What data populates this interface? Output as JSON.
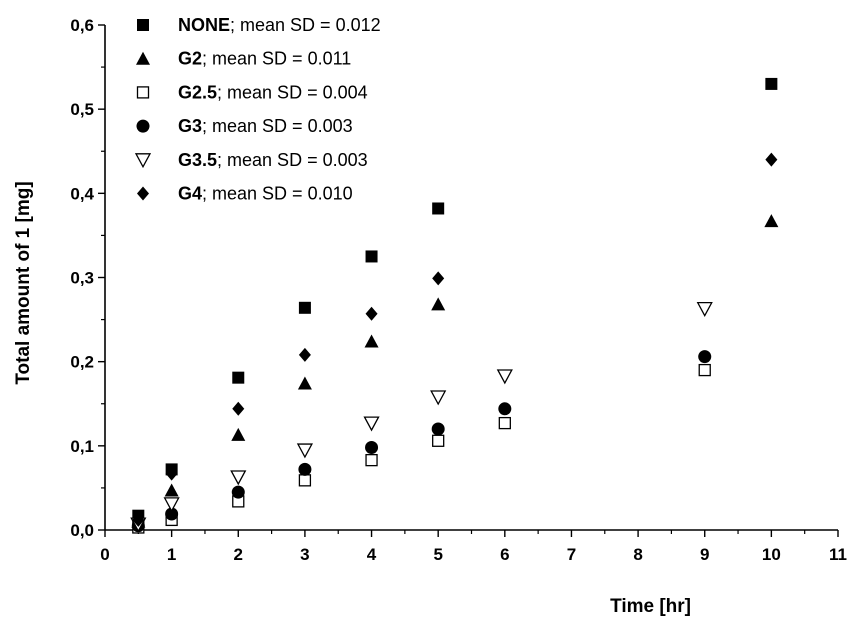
{
  "chart_data": {
    "type": "scatter",
    "xlabel": "Time [hr]",
    "ylabel": "Total amount of 1 [mg]",
    "xlim": [
      0,
      11
    ],
    "ylim": [
      0,
      0.6
    ],
    "x_ticks": [
      "0",
      "1",
      "2",
      "3",
      "4",
      "5",
      "6",
      "7",
      "8",
      "9",
      "10",
      "11"
    ],
    "y_ticks": [
      "0,0",
      "0,1",
      "0,2",
      "0,3",
      "0,4",
      "0,5",
      "0,6"
    ],
    "grid": false,
    "legend_position": "top-left",
    "series": [
      {
        "name": "NONE",
        "stat": "; mean SD = 0.012",
        "marker": "filled-square",
        "x": [
          0.5,
          1,
          2,
          3,
          4,
          5,
          10
        ],
        "y": [
          0.017,
          0.072,
          0.181,
          0.264,
          0.325,
          0.382,
          0.53
        ]
      },
      {
        "name": "G2",
        "stat": "; mean SD = 0.011",
        "marker": "filled-triangle",
        "x": [
          0.5,
          1,
          2,
          3,
          4,
          5,
          10
        ],
        "y": [
          0.01,
          0.047,
          0.113,
          0.174,
          0.224,
          0.268,
          0.367
        ]
      },
      {
        "name": "G2.5",
        "stat": "; mean SD = 0.004",
        "marker": "open-square",
        "x": [
          0.5,
          1,
          2,
          3,
          4,
          5,
          6,
          9,
          10
        ],
        "y": [
          0.003,
          0.012,
          0.034,
          0.059,
          0.083,
          0.106,
          0.127,
          0.19,
          null
        ]
      },
      {
        "name": "G3",
        "stat": "; mean SD = 0.003",
        "marker": "filled-circle",
        "x": [
          0.5,
          1,
          2,
          3,
          4,
          5,
          6,
          9
        ],
        "y": [
          0.005,
          0.019,
          0.045,
          0.072,
          0.098,
          0.12,
          0.144,
          0.206
        ]
      },
      {
        "name": "G3.5",
        "stat": "; mean SD = 0.003",
        "marker": "open-triangle-down",
        "x": [
          0.5,
          1,
          2,
          3,
          4,
          5,
          6,
          9
        ],
        "y": [
          0.007,
          0.031,
          0.063,
          0.095,
          0.127,
          0.158,
          0.183,
          0.263
        ]
      },
      {
        "name": "G4",
        "stat": "; mean SD = 0.010",
        "marker": "filled-diamond",
        "x": [
          0.5,
          1,
          2,
          3,
          4,
          5,
          10
        ],
        "y": [
          0.012,
          0.067,
          0.144,
          0.208,
          0.257,
          0.299,
          0.44
        ]
      }
    ]
  }
}
